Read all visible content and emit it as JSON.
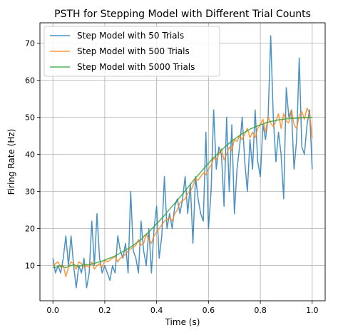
{
  "chart_data": {
    "type": "line",
    "title": "PSTH for Stepping Model with Different Trial Counts",
    "xlabel": "Time (s)",
    "ylabel": "Firing Rate (Hz)",
    "xlim": [
      -0.05,
      1.05
    ],
    "ylim": [
      0.5,
      75.5
    ],
    "xticks": [
      0.0,
      0.2,
      0.4,
      0.6,
      0.8,
      1.0
    ],
    "xtick_labels": [
      "0.0",
      "0.2",
      "0.4",
      "0.6",
      "0.8",
      "1.0"
    ],
    "yticks": [
      10,
      20,
      30,
      40,
      50,
      60,
      70
    ],
    "ytick_labels": [
      "10",
      "20",
      "30",
      "40",
      "50",
      "60",
      "70"
    ],
    "grid": true,
    "legend_position": "top-left",
    "x": [
      0.0,
      0.01,
      0.02,
      0.03,
      0.04,
      0.05,
      0.06,
      0.07,
      0.08,
      0.09,
      0.1,
      0.11,
      0.12,
      0.13,
      0.14,
      0.15,
      0.16,
      0.17,
      0.18,
      0.19,
      0.2,
      0.21,
      0.22,
      0.23,
      0.24,
      0.25,
      0.26,
      0.27,
      0.28,
      0.29,
      0.3,
      0.31,
      0.32,
      0.33,
      0.34,
      0.35,
      0.36,
      0.37,
      0.38,
      0.39,
      0.4,
      0.41,
      0.42,
      0.43,
      0.44,
      0.45,
      0.46,
      0.47,
      0.48,
      0.49,
      0.5,
      0.51,
      0.52,
      0.53,
      0.54,
      0.55,
      0.56,
      0.57,
      0.58,
      0.59,
      0.6,
      0.61,
      0.62,
      0.63,
      0.64,
      0.65,
      0.66,
      0.67,
      0.68,
      0.69,
      0.7,
      0.71,
      0.72,
      0.73,
      0.74,
      0.75,
      0.76,
      0.77,
      0.78,
      0.79,
      0.8,
      0.81,
      0.82,
      0.83,
      0.84,
      0.85,
      0.86,
      0.87,
      0.88,
      0.89,
      0.9,
      0.91,
      0.92,
      0.93,
      0.94,
      0.95,
      0.96,
      0.97,
      0.98,
      0.99,
      1.0
    ],
    "series": [
      {
        "name": "Step Model with 50 Trials",
        "color": "#1f77b4",
        "values": [
          12,
          8,
          10,
          8,
          12,
          18,
          10,
          18,
          10,
          4,
          10,
          8,
          12,
          4,
          8,
          22,
          10,
          24,
          12,
          8,
          10,
          8,
          6,
          10,
          8,
          18,
          14,
          12,
          16,
          8,
          30,
          14,
          12,
          8,
          22,
          14,
          10,
          20,
          8,
          20,
          26,
          12,
          18,
          34,
          20,
          24,
          20,
          26,
          28,
          24,
          28,
          34,
          24,
          32,
          16,
          34,
          28,
          24,
          22,
          46,
          20,
          30,
          52,
          36,
          42,
          40,
          26,
          50,
          30,
          48,
          24,
          36,
          42,
          50,
          38,
          30,
          44,
          36,
          52,
          38,
          34,
          48,
          44,
          50,
          72,
          50,
          38,
          46,
          40,
          28,
          58,
          50,
          52,
          36,
          44,
          66,
          42,
          40,
          48,
          52,
          36
        ]
      },
      {
        "name": "Step Model with 500 Trials",
        "color": "#ff7f0e",
        "values": [
          10,
          10.5,
          11,
          9.5,
          10,
          7,
          9.5,
          11,
          10.5,
          9,
          11,
          10.5,
          9.5,
          10,
          9.5,
          11,
          9,
          10,
          10.5,
          9.5,
          11.5,
          11,
          11.5,
          12,
          12.5,
          11,
          12,
          12.5,
          13,
          14,
          14.5,
          15,
          15.5,
          17,
          15.5,
          16,
          18.5,
          17,
          16,
          18,
          19,
          20,
          21,
          22,
          22.5,
          23,
          22,
          24,
          25,
          27,
          27.5,
          28,
          29.5,
          30,
          31.5,
          33.5,
          33,
          34,
          35,
          34.5,
          36,
          37,
          39,
          38.5,
          40,
          41.5,
          38.5,
          40,
          42,
          41,
          44,
          43.5,
          45,
          44,
          45.5,
          47,
          44.5,
          46,
          44.5,
          47,
          48,
          49.5,
          46,
          50,
          48.5,
          47.5,
          49,
          51,
          47,
          51,
          49,
          48.5,
          52,
          48,
          47,
          50.5,
          51.5,
          49.5,
          52.5,
          51,
          44.5
        ]
      },
      {
        "name": "Step Model with 5000 Trials",
        "color": "#2ca02c",
        "values": [
          9.5,
          9.5,
          9.8,
          10,
          9.7,
          9.4,
          9.8,
          10,
          10.2,
          10,
          9.8,
          10,
          10.2,
          10.3,
          10.2,
          10.4,
          10.6,
          10.8,
          11,
          11.2,
          11.5,
          11.8,
          12,
          12.3,
          12.6,
          13,
          13.4,
          13.8,
          14.2,
          14.6,
          15,
          15.5,
          16,
          16.5,
          17,
          17.8,
          18.5,
          19,
          19.8,
          20.5,
          21.3,
          22,
          22.8,
          23.5,
          24.4,
          25.2,
          26,
          26.8,
          27.6,
          28.5,
          29.3,
          30.2,
          31,
          31.9,
          32.8,
          33.6,
          34.4,
          35.2,
          36,
          36.8,
          37.6,
          38.4,
          39.1,
          39.8,
          40.5,
          41.1,
          41.8,
          42.4,
          43,
          43.6,
          44.1,
          44.6,
          45.1,
          45.6,
          46,
          46.4,
          46.8,
          47.1,
          47.4,
          47.7,
          48,
          48.2,
          48.5,
          48.7,
          48.9,
          49,
          49.2,
          49.3,
          49.4,
          49.5,
          49.6,
          49.6,
          49.7,
          49.7,
          49.8,
          49.8,
          49.9,
          49.9,
          50,
          50,
          50
        ]
      }
    ]
  }
}
